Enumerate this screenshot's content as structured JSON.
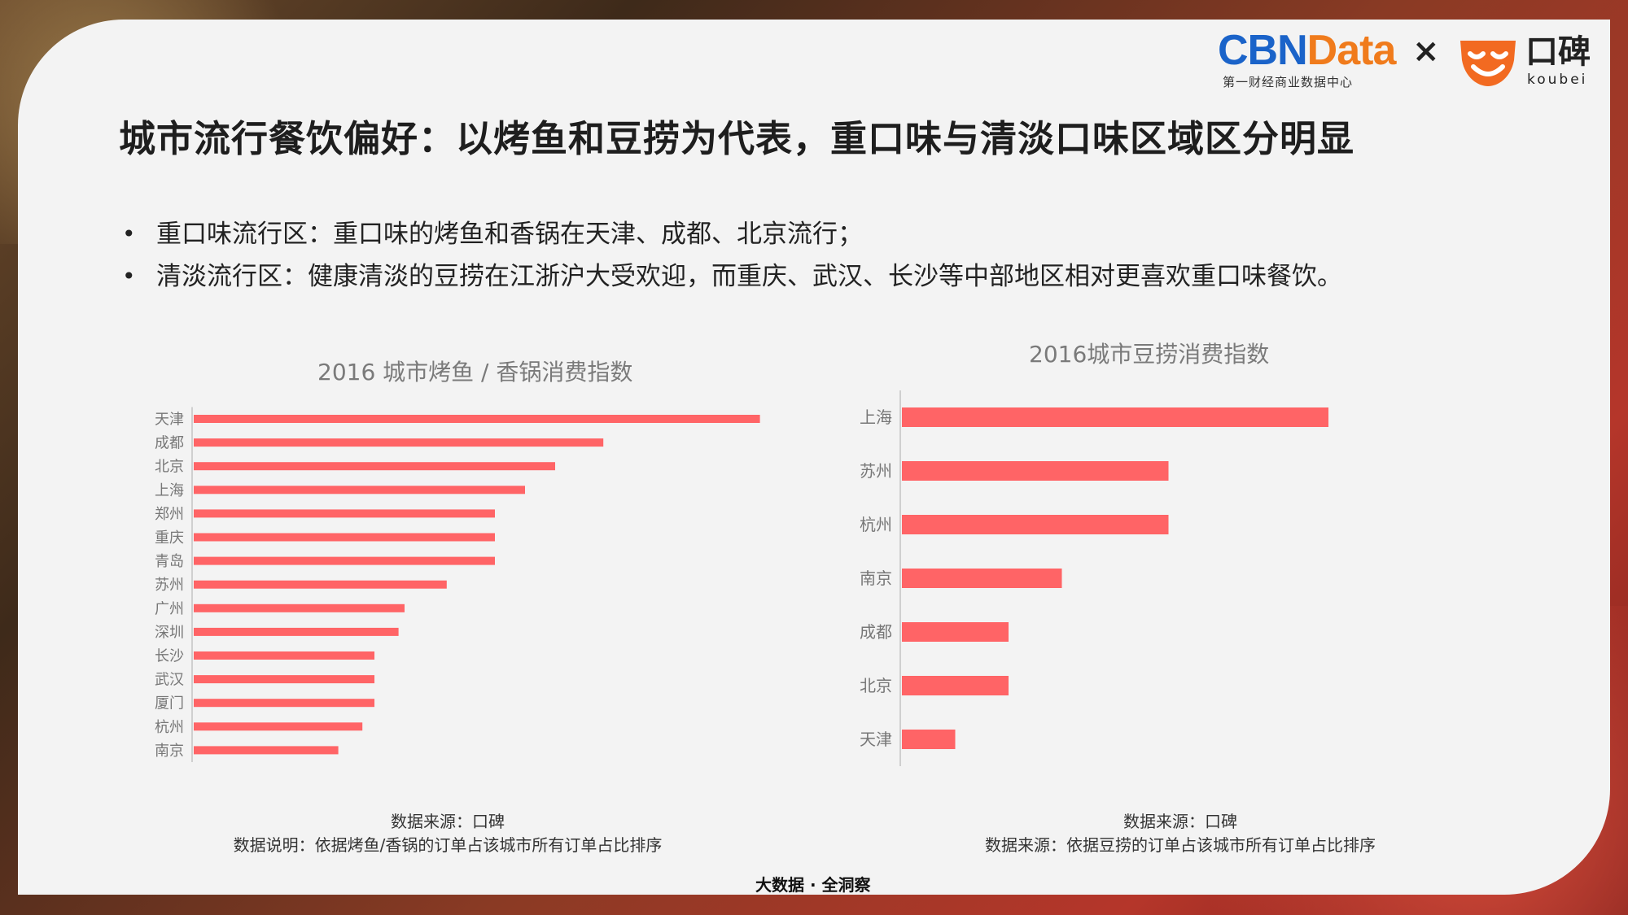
{
  "header": {
    "cbn_brand_a": "CBN",
    "cbn_brand_b": "Data",
    "cbn_sub": "第一财经商业数据中心",
    "times": "×",
    "koubei_cn": "口碑",
    "koubei_en": "koubei"
  },
  "title": "城市流行餐饮偏好：以烤鱼和豆捞为代表，重口味与清淡口味区域区分明显",
  "bullets": [
    {
      "marker": "•",
      "text": "重口味流行区：重口味的烤鱼和香锅在天津、成都、北京流行；"
    },
    {
      "marker": "•",
      "text": "清淡流行区：健康清淡的豆捞在江浙沪大受欢迎，而重庆、武汉、长沙等中部地区相对更喜欢重口味餐饮。"
    }
  ],
  "chart_data": [
    {
      "type": "bar",
      "orientation": "horizontal",
      "title": "2016 城市烤鱼 / 香锅消费指数",
      "categories": [
        "天津",
        "成都",
        "北京",
        "上海",
        "郑州",
        "重庆",
        "青岛",
        "苏州",
        "广州",
        "深圳",
        "长沙",
        "武汉",
        "厦门",
        "杭州",
        "南京"
      ],
      "values": [
        94,
        68,
        60,
        55,
        50,
        50,
        50,
        42,
        35,
        34,
        30,
        30,
        30,
        28,
        24
      ],
      "xlim": [
        0,
        100
      ],
      "grid": false,
      "color": "#ff6466"
    },
    {
      "type": "bar",
      "orientation": "horizontal",
      "title": "2016城市豆捞消费指数",
      "categories": [
        "上海",
        "苏州",
        "杭州",
        "南京",
        "成都",
        "北京",
        "天津"
      ],
      "values": [
        80,
        50,
        50,
        30,
        20,
        20,
        10
      ],
      "xlim": [
        0,
        100
      ],
      "grid": false,
      "color": "#ff6466"
    }
  ],
  "notes": {
    "left_line1": "数据来源：口碑",
    "left_line2": "数据说明：依据烤鱼/香锅的订单占该城市所有订单占比排序",
    "right_line1": "数据来源：口碑",
    "right_line2": "数据来源：依据豆捞的订单占该城市所有订单占比排序"
  },
  "footer": "大数据 · 全洞察"
}
